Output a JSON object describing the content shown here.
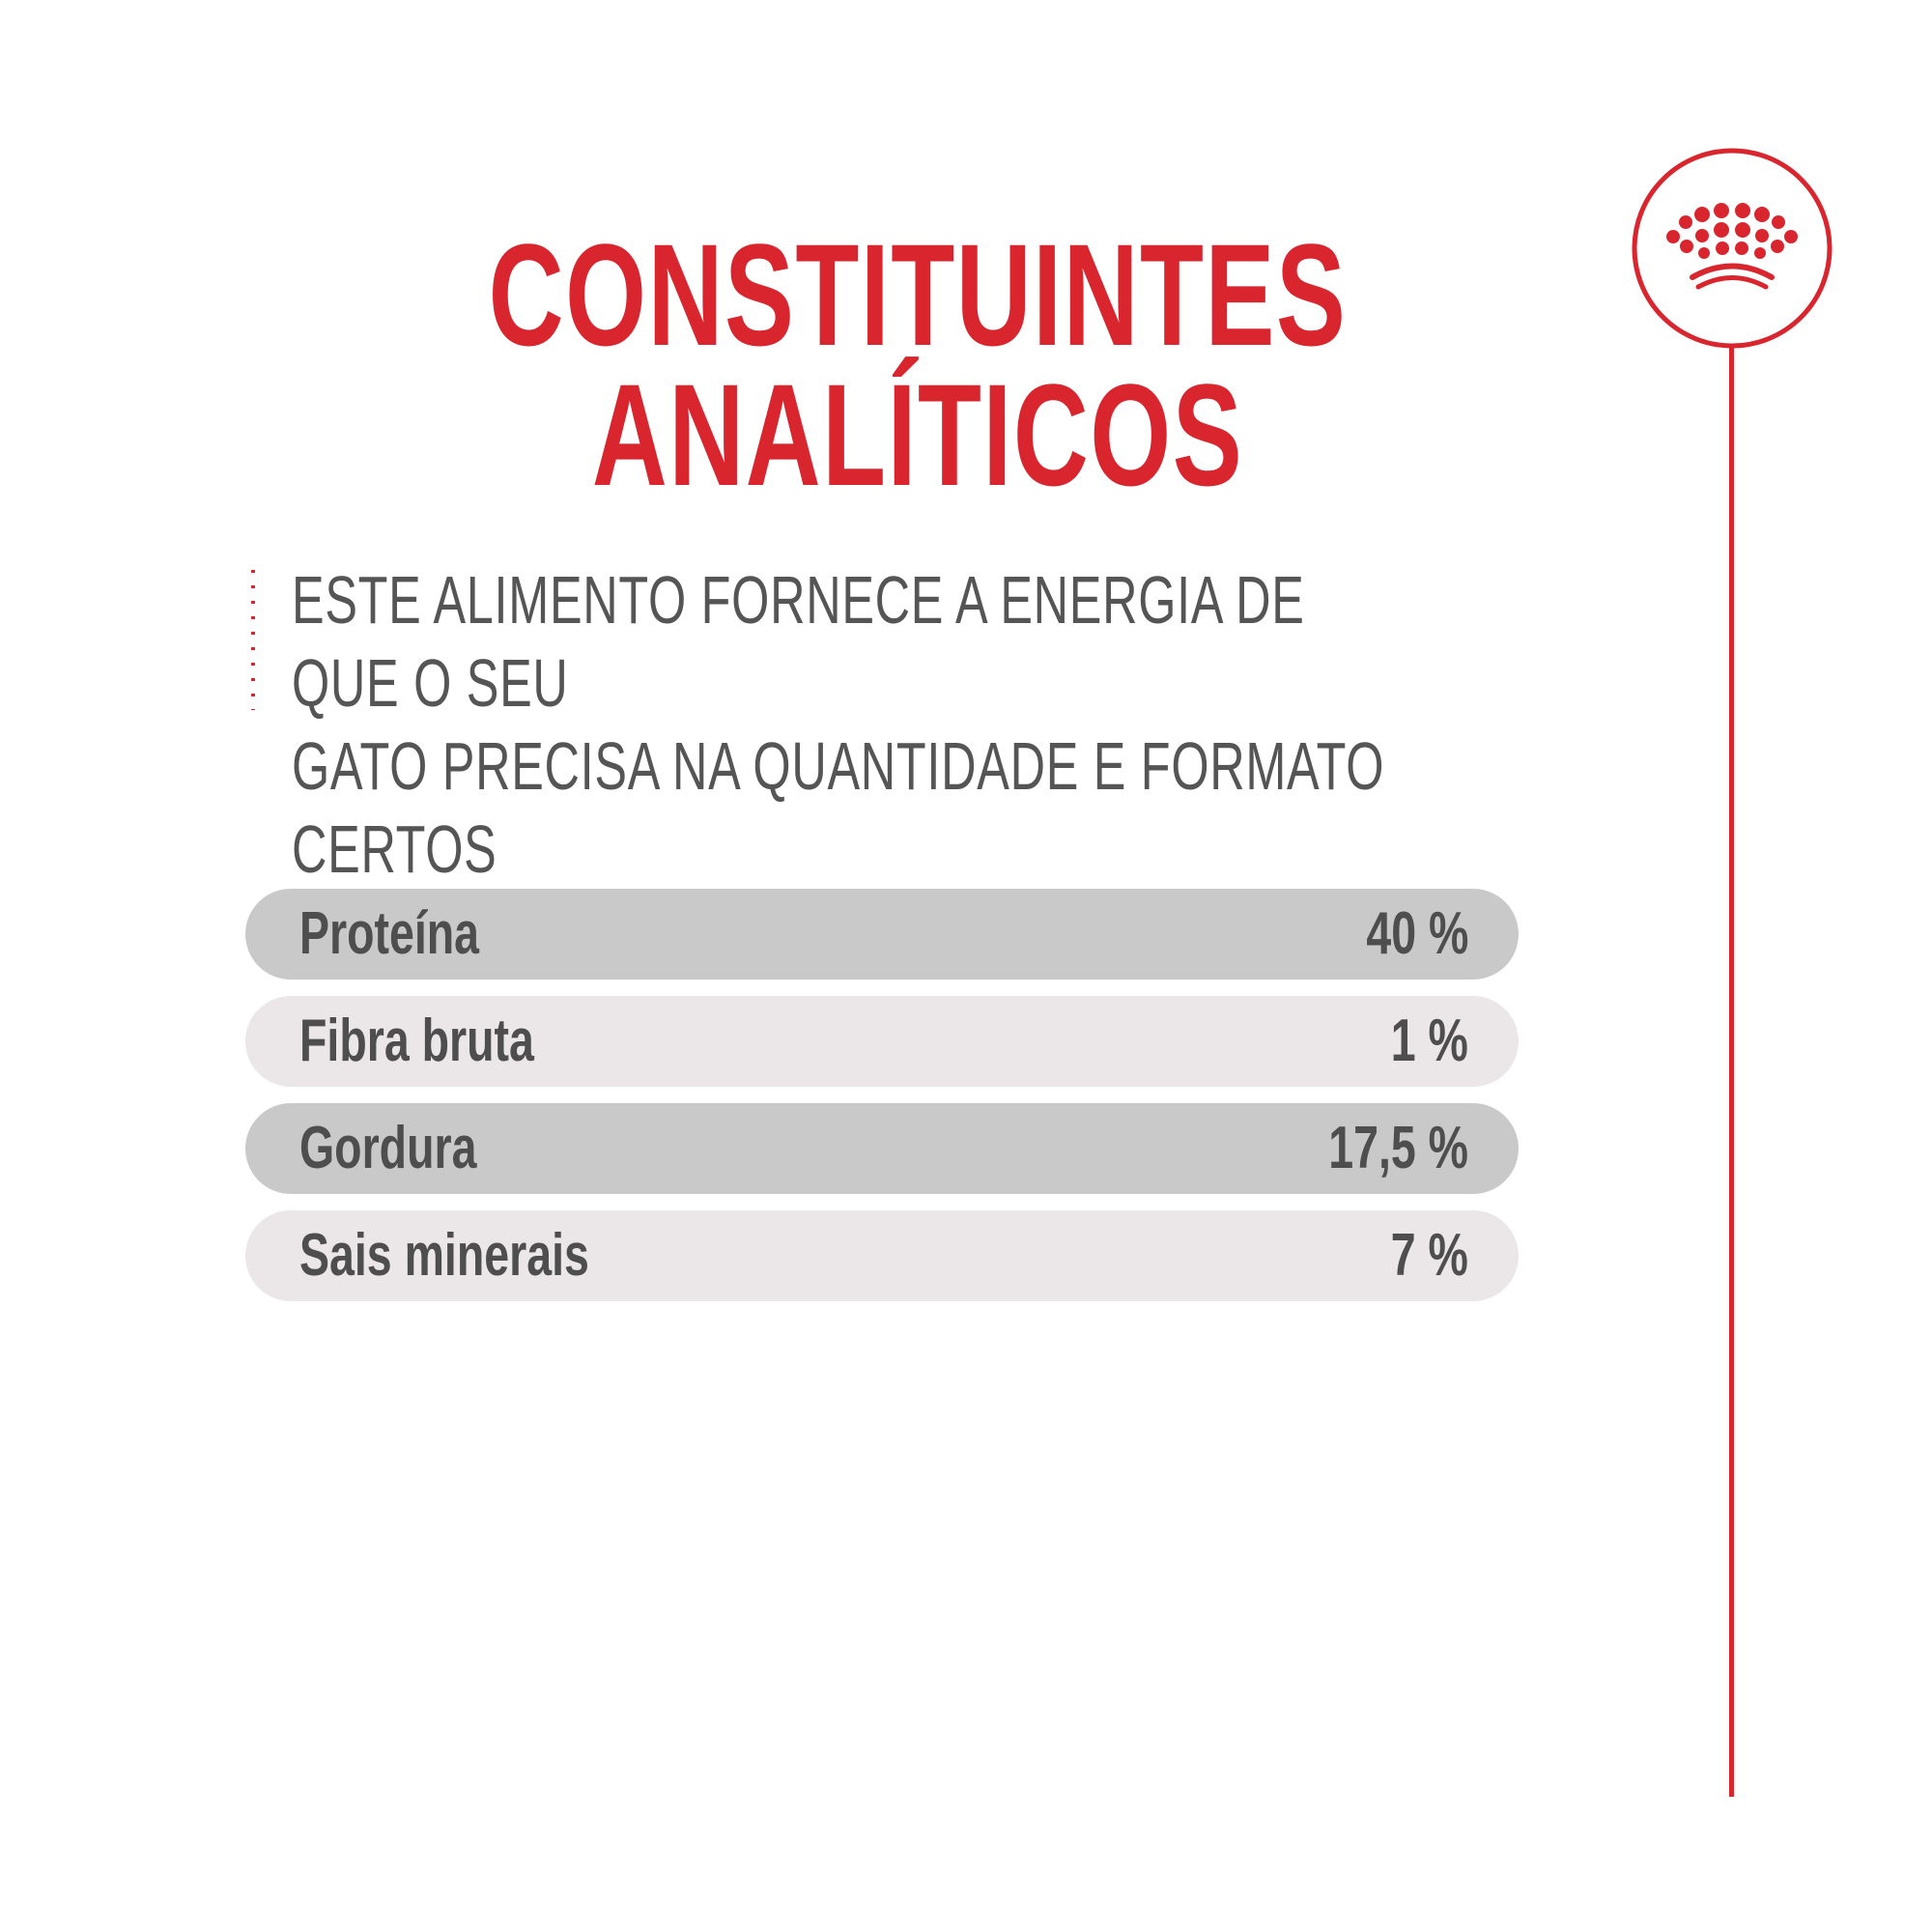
{
  "title": {
    "line1": "CONSTITUINTES",
    "line2": "ANALÍTICOS"
  },
  "subtitle": {
    "line1": "ESTE ALIMENTO FORNECE A ENERGIA DE QUE O SEU",
    "line2": "GATO PRECISA NA QUANTIDADE E FORMATO CERTOS"
  },
  "constituents": [
    {
      "label": "Proteína",
      "value": "40 %"
    },
    {
      "label": "Fibra bruta",
      "value": "1 %"
    },
    {
      "label": "Gordura",
      "value": "17,5 %"
    },
    {
      "label": "Sais minerais",
      "value": "7 %"
    }
  ],
  "colors": {
    "accent": "#d9262e",
    "text": "#4e4e4e",
    "row_dark": "#c9c9c9",
    "row_light": "#ebe6e8"
  },
  "logo": {
    "icon": "crown-icon"
  }
}
